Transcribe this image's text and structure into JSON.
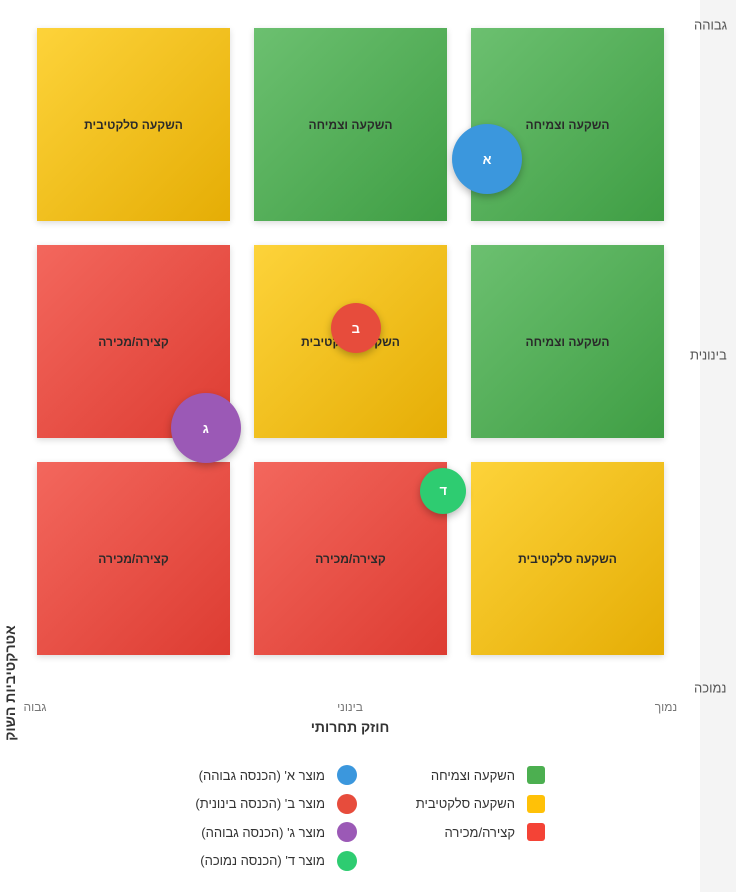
{
  "chart_data": {
    "type": "bubble-matrix",
    "x_axis": {
      "title": "חוזק תחרותי",
      "ticks": [
        "גבוה",
        "בינוני",
        "נמוך"
      ]
    },
    "y_axis": {
      "title": "אטרקטיביות השוק",
      "ticks": [
        "גבוהה",
        "בינונית",
        "נמוכה"
      ]
    },
    "cells": [
      {
        "row": "גבוהה",
        "col": "גבוה",
        "label": "השקעה סלקטיבית",
        "category": "yellow"
      },
      {
        "row": "גבוהה",
        "col": "בינוני",
        "label": "השקעה וצמיחה",
        "category": "green"
      },
      {
        "row": "גבוהה",
        "col": "נמוך",
        "label": "השקעה וצמיחה",
        "category": "green"
      },
      {
        "row": "בינונית",
        "col": "גבוה",
        "label": "קצירה/מכירה",
        "category": "red"
      },
      {
        "row": "בינונית",
        "col": "בינוני",
        "label": "השקעה סלקטיבית",
        "category": "yellow"
      },
      {
        "row": "בינונית",
        "col": "נמוך",
        "label": "השקעה וצמיחה",
        "category": "green"
      },
      {
        "row": "נמוכה",
        "col": "גבוה",
        "label": "קצירה/מכירה",
        "category": "red"
      },
      {
        "row": "נמוכה",
        "col": "בינוני",
        "label": "קצירה/מכירה",
        "category": "red"
      },
      {
        "row": "נמוכה",
        "col": "נמוך",
        "label": "השקעה סלקטיבית",
        "category": "yellow"
      }
    ],
    "products": [
      {
        "letter": "א",
        "name": "מוצר א' (הכנסה גבוהה)",
        "competitive_strength": 0.28,
        "market_attractiveness": 0.79,
        "revenue_level": "גבוהה",
        "color": "#3b97dd"
      },
      {
        "letter": "ב",
        "name": "מוצר ב' (הכנסה בינונית)",
        "competitive_strength": 0.49,
        "market_attractiveness": 0.52,
        "revenue_level": "בינונית",
        "color": "#e74c3c"
      },
      {
        "letter": "ג",
        "name": "מוצר ג' (הכנסה גבוהה)",
        "competitive_strength": 0.73,
        "market_attractiveness": 0.36,
        "revenue_level": "גבוהה",
        "color": "#9b59b6"
      },
      {
        "letter": "ד",
        "name": "מוצר ד' (הכנסה נמוכה)",
        "competitive_strength": 0.35,
        "market_attractiveness": 0.26,
        "revenue_level": "נמוכה",
        "color": "#2ecc71"
      }
    ],
    "legend": {
      "categories": [
        {
          "key": "green",
          "label": "השקעה וצמיחה",
          "color": "#4caf50"
        },
        {
          "key": "yellow",
          "label": "השקעה סלקטיבית",
          "color": "#ffc107"
        },
        {
          "key": "red",
          "label": "קצירה/מכירה",
          "color": "#f44336"
        }
      ]
    },
    "colors": {
      "green": "#4caf50",
      "yellow": "#ffc107",
      "red": "#f44336"
    }
  }
}
